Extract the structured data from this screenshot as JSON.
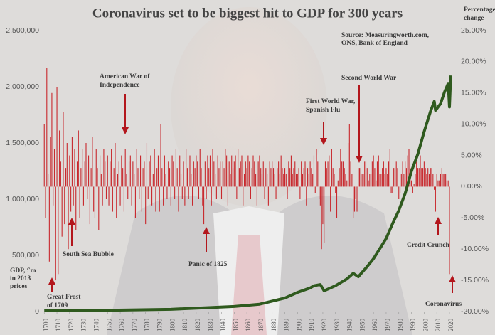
{
  "chart_data": {
    "type": "bar",
    "title": "Coronavirus set to be biggest hit to GDP for 300 years",
    "y_label": [
      "GDP, £m",
      "in 2013",
      "prices"
    ],
    "y2_label": [
      "Percentage",
      "change"
    ],
    "source": [
      "Source: Measuringworth.com,",
      "ONS, Bank of England"
    ],
    "annotations": [
      {
        "lines": [
          "American War of",
          "Independence"
        ]
      },
      {
        "lines": [
          "First World War,",
          "Spanish Flu"
        ]
      },
      {
        "lines": [
          "Second World War"
        ]
      },
      {
        "lines": [
          "South Sea Bubble"
        ]
      },
      {
        "lines": [
          "Panic of 1825"
        ]
      },
      {
        "lines": [
          "Credit Crunch"
        ]
      },
      {
        "lines": [
          "Great Frost",
          "of 1709"
        ]
      },
      {
        "lines": [
          "Coronavirus"
        ]
      }
    ],
    "xlim": [
      1692,
      2029
    ],
    "xticks": [
      1700,
      1710,
      1720,
      1730,
      1740,
      1750,
      1760,
      1770,
      1780,
      1790,
      1800,
      1810,
      1820,
      1830,
      1840,
      1850,
      1860,
      1870,
      1880,
      1890,
      1900,
      1910,
      1920,
      1930,
      1940,
      1950,
      1960,
      1970,
      1980,
      1990,
      2000,
      2010,
      2020
    ],
    "ylim": [
      0,
      2500000
    ],
    "yticks": [
      0,
      {
        "value": 500000,
        "label": "500,000"
      },
      {
        "value": 1000000,
        "label": "1,000,000"
      },
      {
        "value": 1500000,
        "label": "1,500,000"
      },
      {
        "value": 2000000,
        "label": "2,000,000"
      },
      {
        "value": 2500000,
        "label": "2,500,000"
      }
    ],
    "y2lim": [
      -20,
      25
    ],
    "y2ticks": [
      {
        "value": -20,
        "label": "-20.00%"
      },
      {
        "value": -15,
        "label": "-15.00%"
      },
      {
        "value": -10,
        "label": "-10.00%"
      },
      {
        "value": -5,
        "label": "-5.00%"
      },
      {
        "value": 0,
        "label": "0.00%"
      },
      {
        "value": 5,
        "label": "5.00%"
      },
      {
        "value": 10,
        "label": "10.00%"
      },
      {
        "value": 15,
        "label": "15.00%"
      },
      {
        "value": 20,
        "label": "20.00%"
      },
      {
        "value": 25,
        "label": "25.00%"
      }
    ],
    "series": [
      {
        "type": "bar",
        "axis": "y2",
        "color": "#c8282d",
        "x": [
          1700,
          1701,
          1702,
          1703,
          1704,
          1705,
          1706,
          1707,
          1708,
          1709,
          1710,
          1711,
          1712,
          1713,
          1714,
          1715,
          1716,
          1717,
          1718,
          1719,
          1720,
          1721,
          1722,
          1723,
          1724,
          1725,
          1726,
          1727,
          1728,
          1729,
          1730,
          1731,
          1732,
          1733,
          1734,
          1735,
          1736,
          1737,
          1738,
          1739,
          1740,
          1741,
          1742,
          1743,
          1744,
          1745,
          1746,
          1747,
          1748,
          1749,
          1750,
          1751,
          1752,
          1753,
          1754,
          1755,
          1756,
          1757,
          1758,
          1759,
          1760,
          1761,
          1762,
          1763,
          1764,
          1765,
          1766,
          1767,
          1768,
          1769,
          1770,
          1771,
          1772,
          1773,
          1774,
          1775,
          1776,
          1777,
          1778,
          1779,
          1780,
          1781,
          1782,
          1783,
          1784,
          1785,
          1786,
          1787,
          1788,
          1789,
          1790,
          1791,
          1792,
          1793,
          1794,
          1795,
          1796,
          1797,
          1798,
          1799,
          1800,
          1801,
          1802,
          1803,
          1804,
          1805,
          1806,
          1807,
          1808,
          1809,
          1810,
          1811,
          1812,
          1813,
          1814,
          1815,
          1816,
          1817,
          1818,
          1819,
          1820,
          1821,
          1822,
          1823,
          1824,
          1825,
          1826,
          1827,
          1828,
          1829,
          1830,
          1831,
          1832,
          1833,
          1834,
          1835,
          1836,
          1837,
          1838,
          1839,
          1840,
          1841,
          1842,
          1843,
          1844,
          1845,
          1846,
          1847,
          1848,
          1849,
          1850,
          1851,
          1852,
          1853,
          1854,
          1855,
          1856,
          1857,
          1858,
          1859,
          1860,
          1861,
          1862,
          1863,
          1864,
          1865,
          1866,
          1867,
          1868,
          1869,
          1870,
          1871,
          1872,
          1873,
          1874,
          1875,
          1876,
          1877,
          1878,
          1879,
          1880,
          1881,
          1882,
          1883,
          1884,
          1885,
          1886,
          1887,
          1888,
          1889,
          1890,
          1891,
          1892,
          1893,
          1894,
          1895,
          1896,
          1897,
          1898,
          1899,
          1900,
          1901,
          1902,
          1903,
          1904,
          1905,
          1906,
          1907,
          1908,
          1909,
          1910,
          1911,
          1912,
          1913,
          1914,
          1915,
          1916,
          1917,
          1918,
          1919,
          1920,
          1921,
          1922,
          1923,
          1924,
          1925,
          1926,
          1927,
          1928,
          1929,
          1930,
          1931,
          1932,
          1933,
          1934,
          1935,
          1936,
          1937,
          1938,
          1939,
          1940,
          1941,
          1942,
          1943,
          1944,
          1945,
          1946,
          1947,
          1948,
          1949,
          1950,
          1951,
          1952,
          1953,
          1954,
          1955,
          1956,
          1957,
          1958,
          1959,
          1960,
          1961,
          1962,
          1963,
          1964,
          1965,
          1966,
          1967,
          1968,
          1969,
          1970,
          1971,
          1972,
          1973,
          1974,
          1975,
          1976,
          1977,
          1978,
          1979,
          1980,
          1981,
          1982,
          1983,
          1984,
          1985,
          1986,
          1987,
          1988,
          1989,
          1990,
          1991,
          1992,
          1993,
          1994,
          1995,
          1996,
          1997,
          1998,
          1999,
          2000,
          2001,
          2002,
          2003,
          2004,
          2005,
          2006,
          2007,
          2008,
          2009,
          2010,
          2011,
          2012,
          2013,
          2014,
          2015,
          2016,
          2017,
          2018,
          2019,
          2020
        ],
        "values": [
          10,
          -5,
          19,
          2,
          -12,
          8,
          15,
          -3,
          6,
          -15,
          16,
          -14,
          9,
          4,
          -8,
          12,
          -6,
          3,
          7,
          -10,
          5,
          -4,
          8,
          -3,
          6,
          -7,
          4,
          9,
          -5,
          3,
          6,
          -3,
          4,
          7,
          -2,
          5,
          -6,
          3,
          8,
          -4,
          -5,
          6,
          3,
          -7,
          5,
          2,
          -3,
          6,
          4,
          -2,
          5,
          -3,
          4,
          6,
          -4,
          3,
          7,
          -5,
          2,
          4,
          -3,
          5,
          3,
          -4,
          6,
          2,
          -2,
          4,
          5,
          -3,
          4,
          2,
          -5,
          6,
          3,
          -2,
          5,
          -4,
          3,
          4,
          -6,
          7,
          -2,
          4,
          5,
          -3,
          2,
          6,
          -4,
          3,
          5,
          -4,
          10,
          3,
          -3,
          5,
          2,
          -2,
          4,
          3,
          -3,
          5,
          4,
          -2,
          6,
          3,
          -4,
          5,
          2,
          -2,
          4,
          -3,
          6,
          3,
          -2,
          5,
          2,
          -3,
          4,
          3,
          5,
          4,
          -2,
          6,
          3,
          -3,
          -6,
          4,
          -2,
          5,
          3,
          5,
          -3,
          6,
          4,
          2,
          -2,
          5,
          3,
          4,
          -2,
          4,
          3,
          6,
          5,
          -3,
          4,
          2,
          5,
          3,
          4,
          5,
          -2,
          6,
          3,
          4,
          5,
          -3,
          2,
          4,
          3,
          5,
          4,
          -2,
          3,
          5,
          4,
          2,
          -3,
          4,
          5,
          3,
          2,
          4,
          -2,
          3,
          2,
          -3,
          4,
          3,
          4,
          3,
          2,
          -2,
          3,
          4,
          2,
          5,
          3,
          2,
          3,
          2,
          -2,
          4,
          3,
          5,
          2,
          3,
          4,
          2,
          2,
          3,
          -2,
          4,
          2,
          3,
          4,
          -3,
          3,
          2,
          4,
          3,
          2,
          5,
          -1,
          6,
          4,
          -2,
          -3,
          -10,
          -6,
          -9,
          4,
          3,
          4,
          5,
          -4,
          6,
          3,
          2,
          -1,
          -5,
          1,
          3,
          6,
          4,
          4,
          3,
          2,
          1,
          7,
          10,
          4,
          2,
          -5,
          -4,
          -2,
          -4,
          3,
          3,
          3,
          2,
          2,
          4,
          4,
          3,
          1,
          2,
          2,
          4,
          5,
          3,
          1,
          4,
          5,
          2,
          2,
          3,
          4,
          2,
          3,
          2,
          4,
          6,
          -1,
          -1,
          3,
          3,
          4,
          3,
          -2,
          -1,
          2,
          4,
          2,
          4,
          3,
          5,
          6,
          3,
          1,
          -1,
          0.4,
          2,
          4,
          3,
          3,
          5,
          3,
          3,
          4,
          3,
          2,
          3,
          2,
          3,
          3,
          2,
          -0.5,
          -4,
          2,
          1,
          1,
          2,
          3,
          2,
          2,
          2,
          1,
          1,
          -14
        ]
      },
      {
        "type": "line",
        "color": "#2f5a1e",
        "x": [
          1700,
          1750,
          1800,
          1830,
          1850,
          1870,
          1890,
          1900,
          1910,
          1913,
          1918,
          1921,
          1930,
          1939,
          1944,
          1948,
          1955,
          1960,
          1965,
          1970,
          1975,
          1980,
          1985,
          1990,
          1995,
          2000,
          2005,
          2008,
          2009,
          2013,
          2016,
          2019,
          2020,
          2021
        ],
        "values": [
          8000,
          11000,
          20000,
          35000,
          45000,
          65000,
          120000,
          170000,
          210000,
          230000,
          240000,
          185000,
          230000,
          290000,
          340000,
          310000,
          400000,
          470000,
          560000,
          650000,
          780000,
          900000,
          1050000,
          1250000,
          1400000,
          1600000,
          1780000,
          1870000,
          1790000,
          1850000,
          1950000,
          2030000,
          1820000,
          2100000
        ]
      }
    ]
  }
}
